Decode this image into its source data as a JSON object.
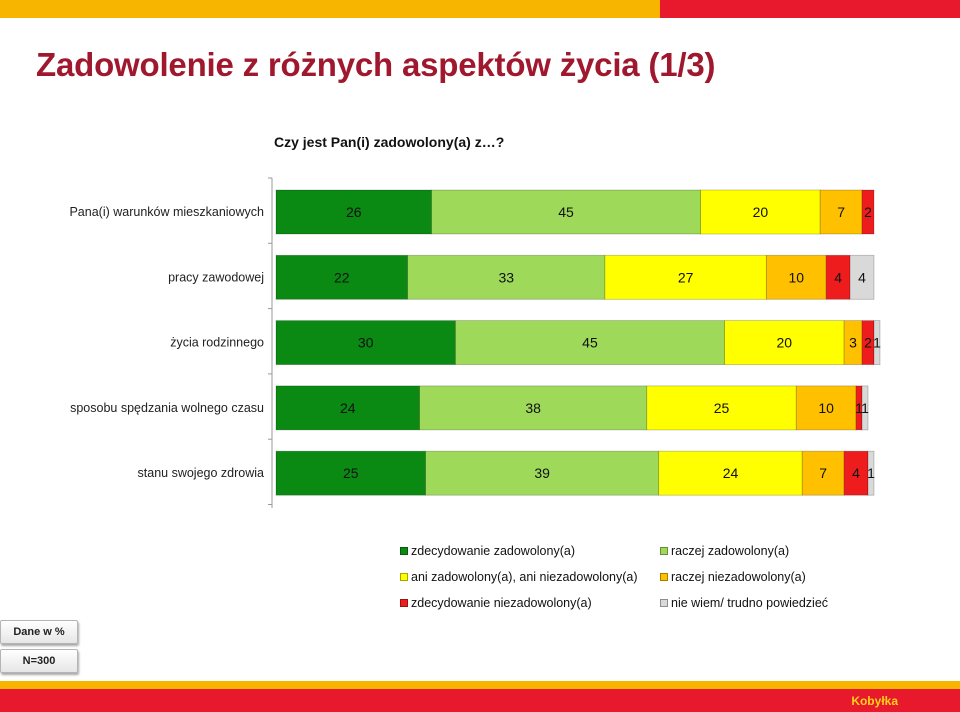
{
  "header": {
    "title": "Zadowolenie z różnych aspektów życia (1/3)",
    "question": "Czy jest Pan(i) zadowolony(a) z…?"
  },
  "chart_data": {
    "type": "bar",
    "orientation": "horizontal",
    "stacked": true,
    "categories": [
      "Pana(i) warunków mieszkaniowych",
      "pracy zawodowej",
      "życia rodzinnego",
      "sposobu spędzania wolnego czasu",
      "stanu swojego zdrowia"
    ],
    "series": [
      {
        "name": "zdecydowanie zadowolony(a)",
        "color": "#0A8A12",
        "values": [
          26,
          22,
          30,
          24,
          25
        ]
      },
      {
        "name": "raczej zadowolony(a)",
        "color": "#9ED95A",
        "values": [
          45,
          33,
          45,
          38,
          39
        ]
      },
      {
        "name": "ani zadowolony(a), ani niezadowolony(a)",
        "color": "#FFFF00",
        "values": [
          20,
          27,
          20,
          25,
          24
        ]
      },
      {
        "name": "raczej niezadowolony(a)",
        "color": "#FFC000",
        "values": [
          7,
          10,
          3,
          10,
          7
        ]
      },
      {
        "name": "zdecydowanie niezadowolony(a)",
        "color": "#EE1C1C",
        "values": [
          2,
          4,
          2,
          1,
          4
        ]
      },
      {
        "name": "nie wiem/ trudno powiedzieć",
        "color": "#D9D9D9",
        "values": [
          0,
          4,
          1,
          1,
          1
        ]
      }
    ],
    "xlim": [
      0,
      100
    ],
    "grid": false,
    "legend_position": "bottom"
  },
  "footer": {
    "unit_label": "Dane w %",
    "sample_label": "N=300",
    "brand": "Kobyłka"
  }
}
